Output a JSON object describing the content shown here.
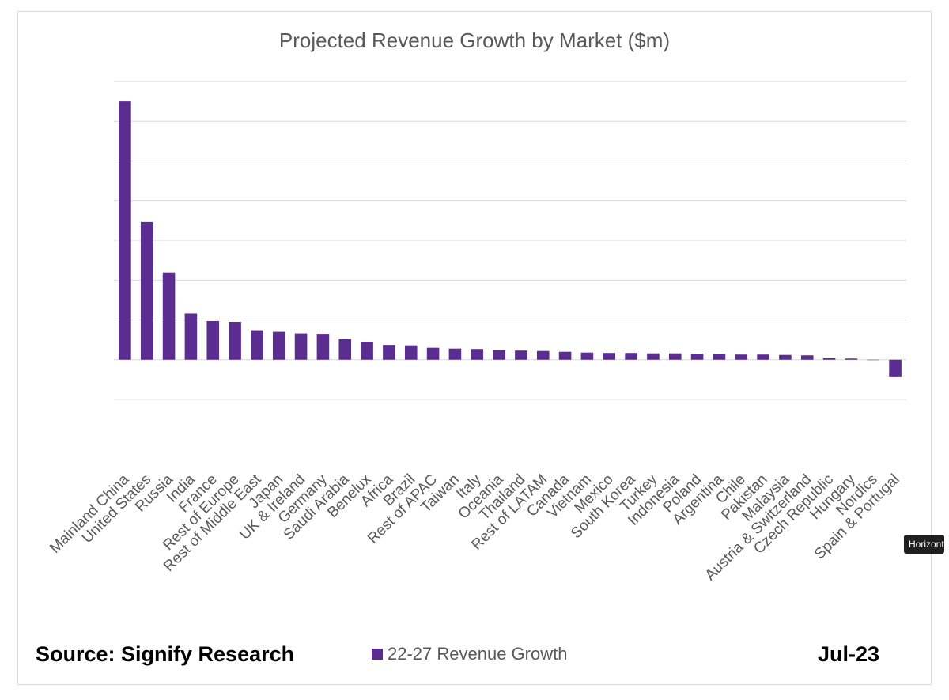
{
  "chart_data": {
    "type": "bar",
    "title": "Projected Revenue Growth by Market ($m)",
    "categories": [
      "Mainland China",
      "United States",
      "Russia",
      "India",
      "France",
      "Rest of Europe",
      "Rest of Middle East",
      "Japan",
      "UK & Ireland",
      "Germany",
      "Saudi Arabia",
      "Benelux",
      "Africa",
      "Brazil",
      "Rest of APAC",
      "Taiwan",
      "Italy",
      "Oceania",
      "Thailand",
      "Rest of LATAM",
      "Canada",
      "Vietnam",
      "Mexico",
      "South Korea",
      "Turkey",
      "Indonesia",
      "Poland",
      "Argentina",
      "Chile",
      "Pakistan",
      "Malaysia",
      "Austria & Switzerland",
      "Czech Republic",
      "Hungary",
      "Nordics",
      "Spain & Portugal"
    ],
    "series": [
      {
        "name": "22-27 Revenue Growth",
        "color": "#5b2d91",
        "values": [
          650,
          346,
          219,
          116,
          97,
          95,
          74,
          70,
          66,
          65,
          52,
          45,
          37,
          36,
          30,
          28,
          27,
          24,
          23,
          22,
          20,
          18,
          17,
          17,
          16,
          16,
          15,
          14,
          13,
          13,
          12,
          11,
          4,
          3,
          0,
          -44
        ]
      }
    ],
    "ylim": [
      -100,
      700
    ],
    "grid": true,
    "ytick_labels_shown": false,
    "legend": "bottom"
  },
  "footer": {
    "source": "Source: Signify Research",
    "date": "Jul-23"
  },
  "tooltip": {
    "text": "Horizontal"
  }
}
